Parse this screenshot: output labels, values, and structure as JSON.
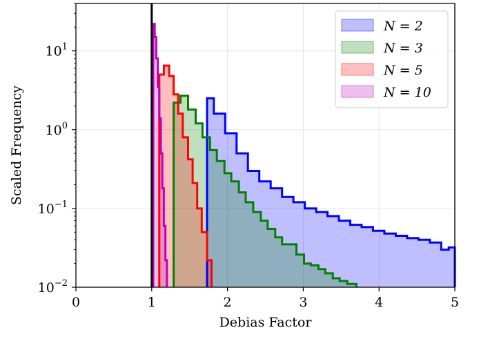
{
  "chart_data": {
    "type": "histogram-step",
    "xlabel": "Debias Factor",
    "ylabel": "Scaled Frequency",
    "xlim": [
      0,
      5
    ],
    "ylim": [
      0.01,
      40
    ],
    "yscale": "log",
    "grid": true,
    "x_ticks": [
      "0",
      "1",
      "2",
      "3",
      "4",
      "5"
    ],
    "y_ticks": [
      {
        "base": "10",
        "exp": "−2",
        "value": 0.01
      },
      {
        "base": "10",
        "exp": "−1",
        "value": 0.1
      },
      {
        "base": "10",
        "exp": "0",
        "value": 1
      },
      {
        "base": "10",
        "exp": "1",
        "value": 10
      }
    ],
    "vline_x": 1,
    "legend_position": "top-right",
    "series": [
      {
        "name": "N = 2",
        "color": "#0000ff",
        "fill": "#0000ff",
        "fill_opacity": 0.25,
        "edges": [
          1.73,
          1.82,
          1.97,
          2.12,
          2.27,
          2.42,
          2.57,
          2.72,
          2.87,
          3.02,
          3.17,
          3.32,
          3.47,
          3.62,
          3.77,
          3.92,
          4.07,
          4.22,
          4.37,
          4.52,
          4.67,
          4.82,
          4.92,
          5.0
        ],
        "values": [
          2.5,
          1.6,
          0.9,
          0.5,
          0.3,
          0.22,
          0.18,
          0.14,
          0.12,
          0.1,
          0.09,
          0.08,
          0.07,
          0.062,
          0.058,
          0.052,
          0.048,
          0.045,
          0.042,
          0.04,
          0.037,
          0.03,
          0.032
        ]
      },
      {
        "name": "N = 3",
        "color": "#008000",
        "fill": "#008000",
        "fill_opacity": 0.25,
        "edges": [
          1.29,
          1.38,
          1.48,
          1.58,
          1.67,
          1.77,
          1.86,
          1.96,
          2.05,
          2.15,
          2.24,
          2.34,
          2.44,
          2.53,
          2.63,
          2.72,
          2.82,
          2.91,
          3.01,
          3.1,
          3.2,
          3.29,
          3.39,
          3.48,
          3.58,
          3.7
        ],
        "values": [
          2.2,
          2.7,
          1.8,
          1.2,
          0.8,
          0.55,
          0.4,
          0.28,
          0.22,
          0.16,
          0.12,
          0.09,
          0.07,
          0.055,
          0.043,
          0.035,
          0.035,
          0.026,
          0.02,
          0.019,
          0.017,
          0.015,
          0.013,
          0.012,
          0.011
        ]
      },
      {
        "name": "N = 5",
        "color": "#ff0000",
        "fill": "#ff0000",
        "fill_opacity": 0.25,
        "edges": [
          1.1,
          1.16,
          1.23,
          1.29,
          1.35,
          1.41,
          1.48,
          1.54,
          1.6,
          1.66,
          1.73,
          1.79
        ],
        "values": [
          5.0,
          6.5,
          4.8,
          2.8,
          1.6,
          0.8,
          0.42,
          0.21,
          0.1,
          0.05,
          0.022
        ]
      },
      {
        "name": "N = 10",
        "color": "#bf00bf",
        "fill": "#bf00bf",
        "fill_opacity": 0.25,
        "edges": [
          1.02,
          1.04,
          1.06,
          1.08,
          1.1,
          1.12,
          1.14,
          1.16,
          1.18,
          1.2
        ],
        "values": [
          22,
          15,
          8.0,
          3.5,
          1.4,
          0.5,
          0.18,
          0.06,
          0.022
        ]
      }
    ]
  }
}
